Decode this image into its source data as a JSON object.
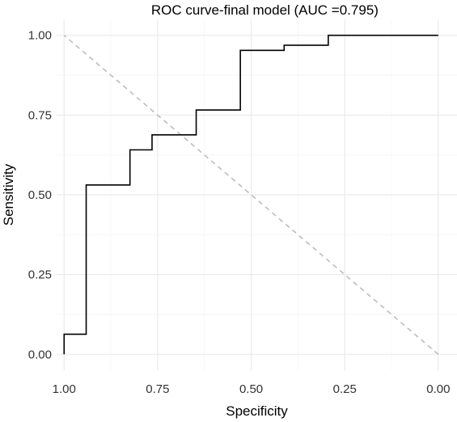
{
  "chart_data": {
    "type": "line",
    "title": "ROC curve-final model (AUC =0.795)",
    "xlabel": "Specificity",
    "ylabel": "Sensitivity",
    "x_reversed": true,
    "xlim": [
      1.02,
      -0.05
    ],
    "ylim": [
      -0.05,
      1.05
    ],
    "xticks": [
      1.0,
      0.75,
      0.5,
      0.25,
      0.0
    ],
    "xtick_labels": [
      "1.00",
      "0.75",
      "0.50",
      "0.25",
      "0.00"
    ],
    "yticks": [
      0.0,
      0.25,
      0.5,
      0.75,
      1.0
    ],
    "ytick_labels": [
      "0.00",
      "0.25",
      "0.50",
      "0.75",
      "1.00"
    ],
    "grid": true,
    "series": [
      {
        "x": [
          1.0,
          1.0,
          0.941,
          0.941,
          0.824,
          0.824,
          0.765,
          0.765,
          0.647,
          0.647,
          0.529,
          0.529,
          0.412,
          0.412,
          0.294,
          0.294,
          0.0
        ],
        "y": [
          0.0,
          0.063,
          0.063,
          0.531,
          0.531,
          0.641,
          0.641,
          0.688,
          0.688,
          0.766,
          0.766,
          0.953,
          0.953,
          0.969,
          0.969,
          1.0,
          1.0
        ],
        "color": "#000000"
      }
    ],
    "reference_line": {
      "from": [
        0.0,
        0.0
      ],
      "to": [
        1.0,
        1.0
      ],
      "style": "dashed",
      "color": "#bdbdbd"
    }
  }
}
